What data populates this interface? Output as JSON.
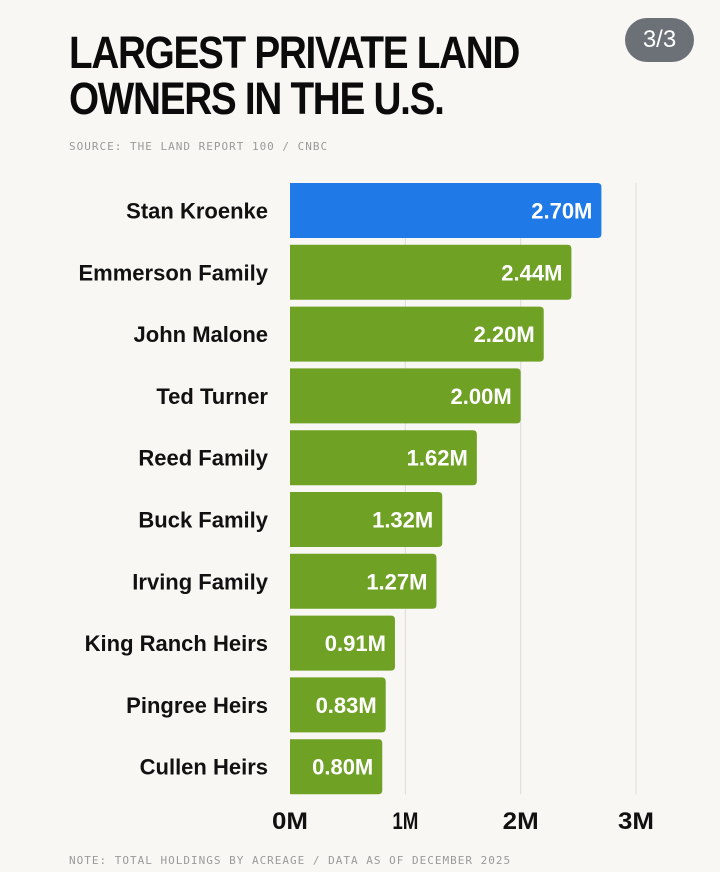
{
  "badge": "3/3",
  "chart_data": {
    "type": "bar",
    "orientation": "horizontal",
    "title": "LARGEST PRIVATE LAND OWNERS IN THE U.S.",
    "source": "SOURCE: THE LAND REPORT 100 / CNBC",
    "note": "NOTE: TOTAL HOLDINGS BY ACREAGE / DATA AS OF DECEMBER 2025",
    "categories": [
      "Stan Kroenke",
      "Emmerson Family",
      "John Malone",
      "Ted Turner",
      "Reed Family",
      "Buck Family",
      "Irving Family",
      "King Ranch Heirs",
      "Pingree Heirs",
      "Cullen Heirs"
    ],
    "values": [
      2.7,
      2.44,
      2.2,
      2.0,
      1.62,
      1.32,
      1.27,
      0.91,
      0.83,
      0.8
    ],
    "value_labels": [
      "2.70M",
      "2.44M",
      "2.20M",
      "2.00M",
      "1.62M",
      "1.32M",
      "1.27M",
      "0.91M",
      "0.83M",
      "0.80M"
    ],
    "unit": "million acres",
    "xlim": [
      0,
      3
    ],
    "xticks": [
      0,
      1,
      2,
      3
    ],
    "xtick_labels": [
      "0M",
      "1M",
      "2M",
      "3M"
    ],
    "grid": true,
    "highlight_index": 0,
    "colors": {
      "highlight": "#1f7ae8",
      "default": "#6fa125"
    }
  }
}
